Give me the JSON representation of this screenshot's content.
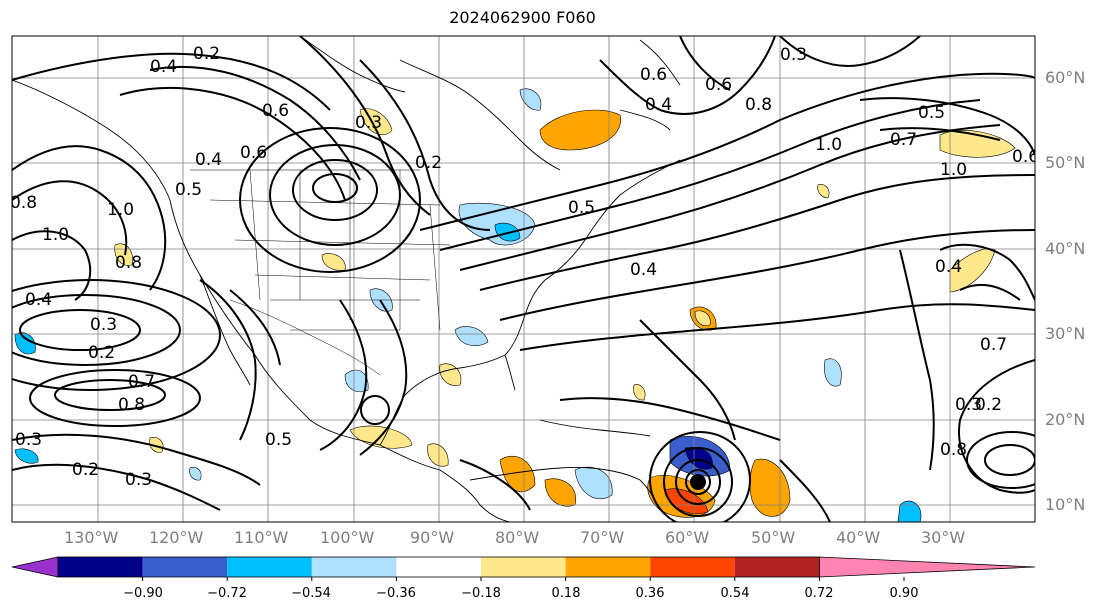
{
  "title": "2024062900 F060",
  "longitude_labels": [
    "130°W",
    "120°W",
    "110°W",
    "100°W",
    "90°W",
    "80°W",
    "70°W",
    "60°W",
    "50°W",
    "40°W",
    "30°W"
  ],
  "latitude_labels": [
    "60°N",
    "50°N",
    "40°N",
    "30°N",
    "20°N",
    "10°N"
  ],
  "contour_labels": [
    "0.2",
    "0.4",
    "0.6",
    "0.8",
    "1.0",
    "0.2",
    "0.4",
    "0.6",
    "0.3",
    "0.5",
    "0.2",
    "0.3",
    "0.4",
    "0.5",
    "0.8",
    "1.0",
    "0.4",
    "0.6",
    "0.8",
    "1.0",
    "0.5",
    "0.7",
    "0.6",
    "0.4",
    "0.2",
    "0.3",
    "0.7",
    "0.8",
    "0.2",
    "0.3",
    "0.5",
    "0.3",
    "0.4",
    "0.6",
    "0.7",
    "0.3",
    "1.0",
    "0.8"
  ],
  "colorbar": {
    "ticks": [
      "−0.90",
      "−0.72",
      "−0.54",
      "−0.36",
      "−0.18",
      "0.18",
      "0.36",
      "0.54",
      "0.72",
      "0.90"
    ],
    "colors": [
      "#9932cc",
      "#00008b",
      "#3a5fcd",
      "#00bfff",
      "#b0e0ff",
      "#ffffff",
      "#ffe88c",
      "#ffa500",
      "#ff4500",
      "#b22222",
      "#ff85b0"
    ]
  }
}
